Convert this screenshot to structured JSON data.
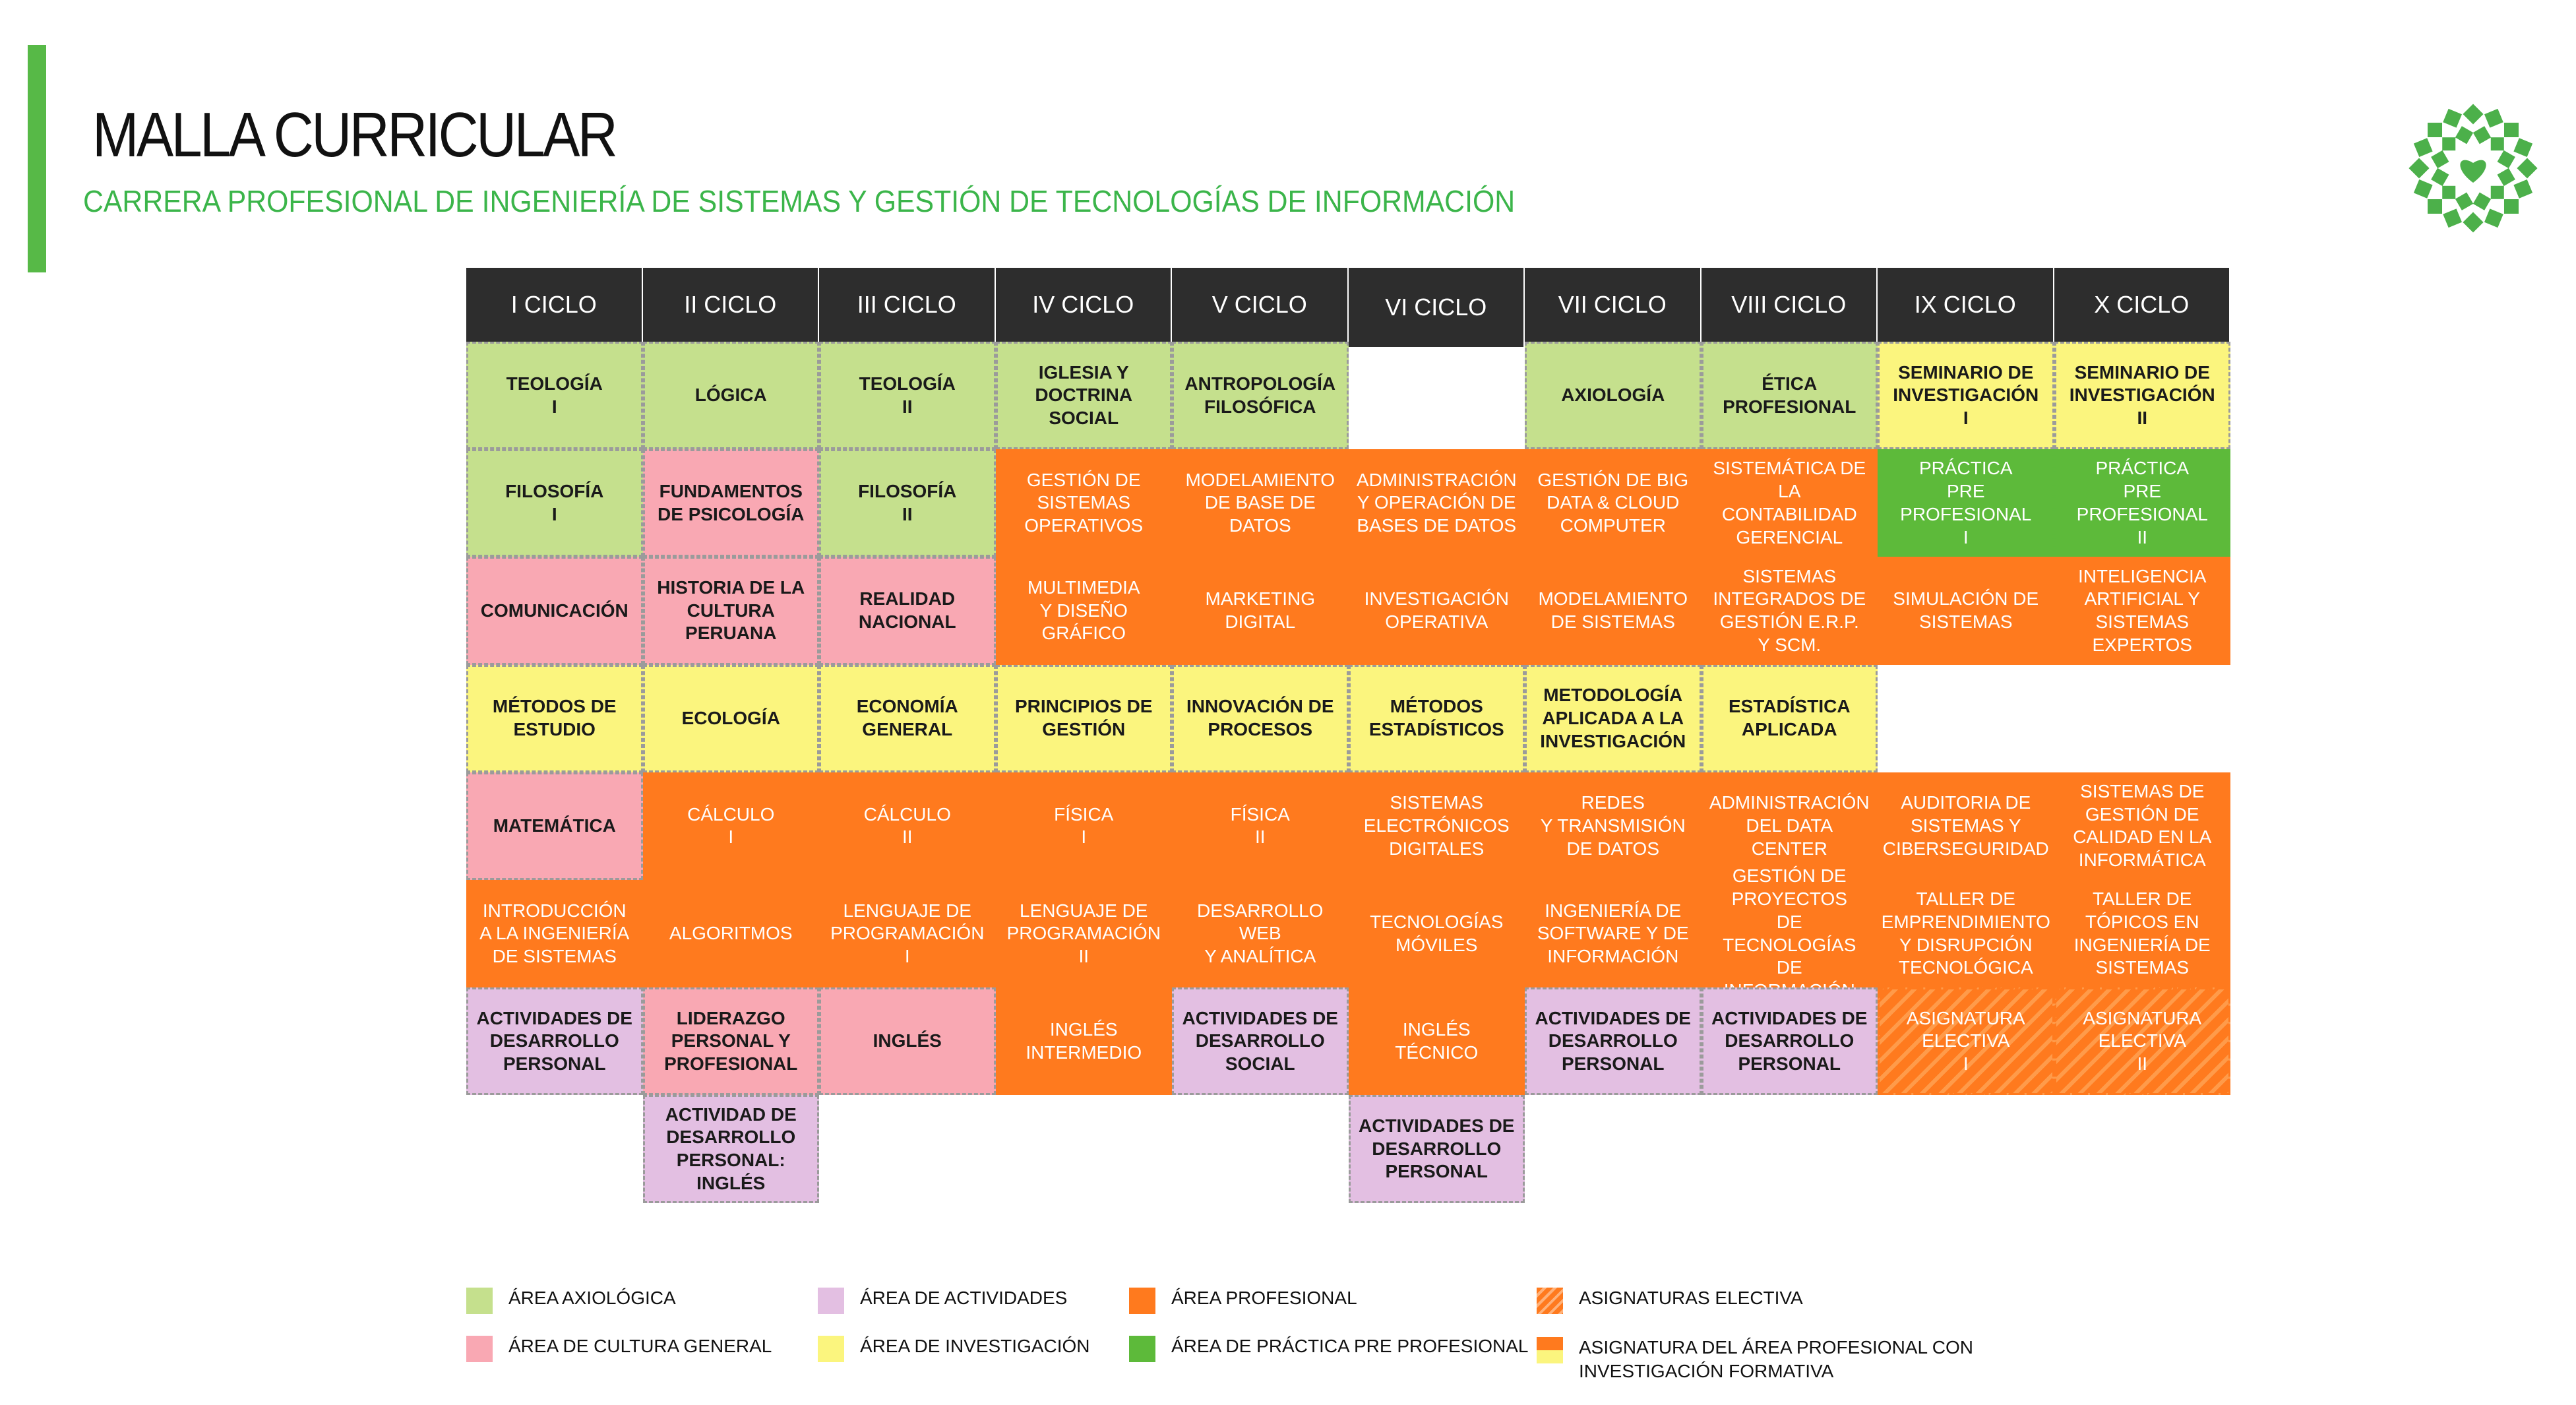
{
  "title": "MALLA CURRICULAR",
  "subtitle": "CARRERA PROFESIONAL DE INGENIERÍA DE SISTEMAS Y GESTIÓN DE TECNOLOGÍAS DE INFORMACIÓN",
  "colors": {
    "accent": "#57b947",
    "header_bg": "#2d2d2d",
    "axiologica": "#c5e08d",
    "cultura_general": "#f9a8b3",
    "actividades": "#e3bfe2",
    "investigacion": "#fbf57e",
    "profesional": "#ff7a1e",
    "practica": "#5dba3a"
  },
  "icons": {
    "logo": "flower-logo-icon"
  },
  "ciclos": [
    {
      "header": "I CICLO",
      "courses": [
        {
          "label": "TEOLOGÍA\nI",
          "area": "axio"
        },
        {
          "label": "FILOSOFÍA\nI",
          "area": "axio"
        },
        {
          "label": "COMUNICACIÓN",
          "area": "cult"
        },
        {
          "label": "MÉTODOS DE\nESTUDIO",
          "area": "inv"
        },
        {
          "label": "MATEMÁTICA",
          "area": "cult"
        },
        {
          "label": "INTRODUCCIÓN\nA LA INGENIERÍA\nDE SISTEMAS",
          "area": "prof"
        },
        {
          "label": "ACTIVIDADES DE\nDESARROLLO\nPERSONAL",
          "area": "act"
        }
      ]
    },
    {
      "header": "II CICLO",
      "courses": [
        {
          "label": "LÓGICA",
          "area": "axio"
        },
        {
          "label": "FUNDAMENTOS\nDE PSICOLOGÍA",
          "area": "cult"
        },
        {
          "label": "HISTORIA DE LA\nCULTURA PERUANA",
          "area": "cult"
        },
        {
          "label": "ECOLOGÍA",
          "area": "inv"
        },
        {
          "label": "CÁLCULO\nI",
          "area": "prof"
        },
        {
          "label": "ALGORITMOS",
          "area": "prof"
        },
        {
          "label": "LIDERAZGO\nPERSONAL Y\nPROFESIONAL",
          "area": "cult"
        },
        {
          "label": "ACTIVIDAD DE\nDESARROLLO\nPERSONAL: INGLÉS",
          "area": "act"
        }
      ]
    },
    {
      "header": "III CICLO",
      "courses": [
        {
          "label": "TEOLOGÍA\nII",
          "area": "axio"
        },
        {
          "label": "FILOSOFÍA\nII",
          "area": "axio"
        },
        {
          "label": "REALIDAD\nNACIONAL",
          "area": "cult"
        },
        {
          "label": "ECONOMÍA\nGENERAL",
          "area": "inv"
        },
        {
          "label": "CÁLCULO\nII",
          "area": "prof"
        },
        {
          "label": "LENGUAJE DE\nPROGRAMACIÓN\nI",
          "area": "prof"
        },
        {
          "label": "INGLÉS",
          "area": "cult"
        }
      ]
    },
    {
      "header": "IV CICLO",
      "courses": [
        {
          "label": "IGLESIA Y\nDOCTRINA\nSOCIAL",
          "area": "axio"
        },
        {
          "label": "GESTIÓN DE\nSISTEMAS\nOPERATIVOS",
          "area": "prof"
        },
        {
          "label": "MULTIMEDIA\nY DISEÑO GRÁFICO",
          "area": "prof"
        },
        {
          "label": "PRINCIPIOS DE\nGESTIÓN",
          "area": "inv"
        },
        {
          "label": "FÍSICA\nI",
          "area": "prof"
        },
        {
          "label": "LENGUAJE DE\nPROGRAMACIÓN\nII",
          "area": "prof"
        },
        {
          "label": "INGLÉS\nINTERMEDIO",
          "area": "prof"
        }
      ]
    },
    {
      "header": "V CICLO",
      "courses": [
        {
          "label": "ANTROPOLOGÍA\nFILOSÓFICA",
          "area": "axio"
        },
        {
          "label": "MODELAMIENTO\nDE BASE DE DATOS",
          "area": "prof"
        },
        {
          "label": "MARKETING\nDIGITAL",
          "area": "prof"
        },
        {
          "label": "INNOVACIÓN DE\nPROCESOS",
          "area": "inv"
        },
        {
          "label": "FÍSICA\nII",
          "area": "prof"
        },
        {
          "label": "DESARROLLO WEB\nY ANALÍTICA",
          "area": "prof"
        },
        {
          "label": "ACTIVIDADES DE\nDESARROLLO\nSOCIAL",
          "area": "act"
        }
      ]
    },
    {
      "header": "VI CICLO",
      "courses": [
        {
          "label": "ADMINISTRACIÓN\nY OPERACIÓN DE\nBASES DE DATOS",
          "area": "prof"
        },
        {
          "label": "INVESTIGACIÓN\nOPERATIVA",
          "area": "prof"
        },
        {
          "label": "MÉTODOS\nESTADÍSTICOS",
          "area": "inv"
        },
        {
          "label": "SISTEMAS\nELECTRÓNICOS\nDIGITALES",
          "area": "prof"
        },
        {
          "label": "TECNOLOGÍAS\nMÓVILES",
          "area": "prof"
        },
        {
          "label": "INGLÉS\nTÉCNICO",
          "area": "prof"
        },
        {
          "label": "ACTIVIDADES DE\nDESARROLLO\nPERSONAL",
          "area": "act"
        }
      ]
    },
    {
      "header": "VII CICLO",
      "courses": [
        {
          "label": "AXIOLOGÍA",
          "area": "axio"
        },
        {
          "label": "GESTIÓN DE BIG\nDATA & CLOUD\nCOMPUTER",
          "area": "prof"
        },
        {
          "label": "MODELAMIENTO\nDE SISTEMAS",
          "area": "prof"
        },
        {
          "label": "METODOLOGÍA\nAPLICADA A LA\nINVESTIGACIÓN",
          "area": "inv"
        },
        {
          "label": "REDES\nY TRANSMISIÓN\nDE DATOS",
          "area": "prof"
        },
        {
          "label": "INGENIERÍA DE\nSOFTWARE Y DE\nINFORMACIÓN",
          "area": "prof"
        },
        {
          "label": "ACTIVIDADES DE\nDESARROLLO\nPERSONAL",
          "area": "act"
        }
      ]
    },
    {
      "header": "VIII CICLO",
      "courses": [
        {
          "label": "ÉTICA\nPROFESIONAL",
          "area": "axio"
        },
        {
          "label": "SISTEMÁTICA DE\nLA CONTABILIDAD\nGERENCIAL",
          "area": "prof"
        },
        {
          "label": "SISTEMAS\nINTEGRADOS DE\nGESTIÓN E.R.P.\nY SCM.",
          "area": "prof"
        },
        {
          "label": "ESTADÍSTICA\nAPLICADA",
          "area": "inv"
        },
        {
          "label": "ADMINISTRACIÓN\nDEL DATA CENTER",
          "area": "prof"
        },
        {
          "label": "GESTIÓN DE\nPROYECTOS\nDE TECNOLOGÍAS\nDE INFORMACIÓN",
          "area": "prof"
        },
        {
          "label": "ACTIVIDADES DE\nDESARROLLO\nPERSONAL",
          "area": "act"
        }
      ]
    },
    {
      "header": "IX CICLO",
      "courses": [
        {
          "label": "SEMINARIO DE\nINVESTIGACIÓN\nI",
          "area": "inv"
        },
        {
          "label": "PRÁCTICA\nPRE PROFESIONAL\nI",
          "area": "prac"
        },
        {
          "label": "SIMULACIÓN DE\nSISTEMAS",
          "area": "prof"
        },
        {
          "label": "AUDITORIA DE\nSISTEMAS Y\nCIBERSEGURIDAD",
          "area": "prof"
        },
        {
          "label": "TALLER DE\nEMPRENDIMIENTO\nY DISRUPCIÓN\nTECNOLÓGICA",
          "area": "prof"
        },
        {
          "label": "ASIGNATURA\nELECTIVA\nI",
          "area": "elec"
        }
      ]
    },
    {
      "header": "X CICLO",
      "courses": [
        {
          "label": "SEMINARIO DE\nINVESTIGACIÓN\nII",
          "area": "inv"
        },
        {
          "label": "PRÁCTICA\nPRE PROFESIONAL\nII",
          "area": "prac"
        },
        {
          "label": "INTELIGENCIA\nARTIFICIAL Y\nSISTEMAS EXPERTOS",
          "area": "prof"
        },
        {
          "label": "SISTEMAS DE\nGESTIÓN DE\nCALIDAD EN LA\nINFORMÁTICA",
          "area": "prof"
        },
        {
          "label": "TALLER DE\nTÓPICOS EN\nINGENIERÍA DE\nSISTEMAS",
          "area": "prof"
        },
        {
          "label": "ASIGNATURA\nELECTIVA\nII",
          "area": "elec"
        }
      ]
    }
  ],
  "legend": [
    {
      "label": "ÁREA AXIOLÓGICA",
      "swatch": "axio"
    },
    {
      "label": "ÁREA DE CULTURA GENERAL",
      "swatch": "cult"
    },
    {
      "label": "ÁREA DE ACTIVIDADES",
      "swatch": "act"
    },
    {
      "label": "ÁREA DE INVESTIGACIÓN",
      "swatch": "inv"
    },
    {
      "label": "ÁREA PROFESIONAL",
      "swatch": "prof"
    },
    {
      "label": "ÁREA DE PRÁCTICA PRE PROFESIONAL",
      "swatch": "prac"
    },
    {
      "label": "ASIGNATURAS ELECTIVA",
      "swatch": "elec"
    },
    {
      "label": "ASIGNATURA DEL ÁREA PROFESIONAL CON\nINVESTIGACIÓN FORMATIVA",
      "swatch": "mix"
    }
  ]
}
